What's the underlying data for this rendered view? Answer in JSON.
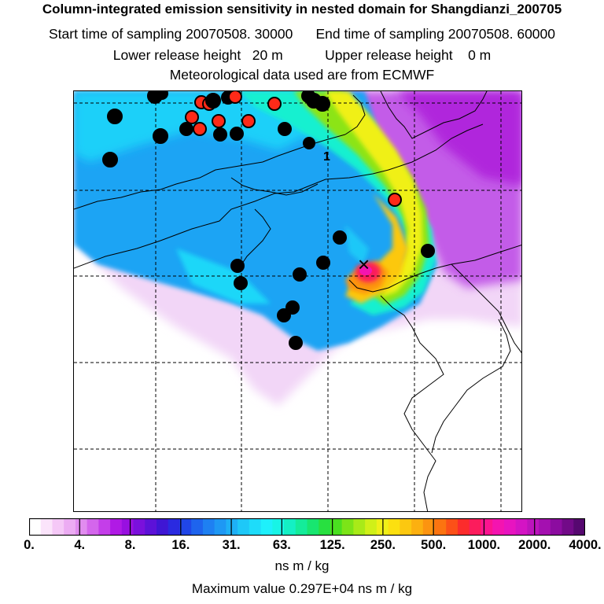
{
  "header": {
    "title": "Column-integrated emission sensitivity in nested domain for Shangdianzi_200705",
    "sampling_line": "Start time of sampling 20070508. 30000      End time of sampling 20070508. 60000",
    "release_line": "Lower release height   20 m           Upper release height    0 m",
    "met_line": "Meteorological data used are from ECMWF"
  },
  "map": {
    "receptor_marker": "×",
    "label_one": "1"
  },
  "colorbar": {
    "tick_labels": [
      "0.",
      "4.",
      "8.",
      "16.",
      "31.",
      "63.",
      "125.",
      "250.",
      "500.",
      "1000.",
      "2000.",
      "4000."
    ],
    "colors": [
      "#ffffff",
      "#fbe4fb",
      "#f5c8f7",
      "#ecacf3",
      "#e18cef",
      "#d466ec",
      "#c43ee9",
      "#b01ae5",
      "#9810e0",
      "#7a10dc",
      "#5c12d8",
      "#3f16d4",
      "#2a2ae0",
      "#2046e8",
      "#1e64ee",
      "#1e80f2",
      "#1e98f4",
      "#1eb0f6",
      "#1ec8f8",
      "#1edcfa",
      "#1ef0fb",
      "#18f4e6",
      "#14f0c4",
      "#14ec9a",
      "#18e670",
      "#28e040",
      "#4ae020",
      "#7ce418",
      "#a8ea18",
      "#d0f018",
      "#f0f018",
      "#fce010",
      "#fcc810",
      "#fcb010",
      "#fc9410",
      "#fc7410",
      "#fc5018",
      "#fc2c2c",
      "#fc1c5c",
      "#fc1490",
      "#f414b0",
      "#e814c0",
      "#d414c4",
      "#bc14bc",
      "#a410b0",
      "#8c0ca0",
      "#720a88",
      "#560870"
    ],
    "units": "ns m / kg"
  },
  "footer": {
    "max_value": "Maximum value  0.297E+04 ns m / kg"
  }
}
